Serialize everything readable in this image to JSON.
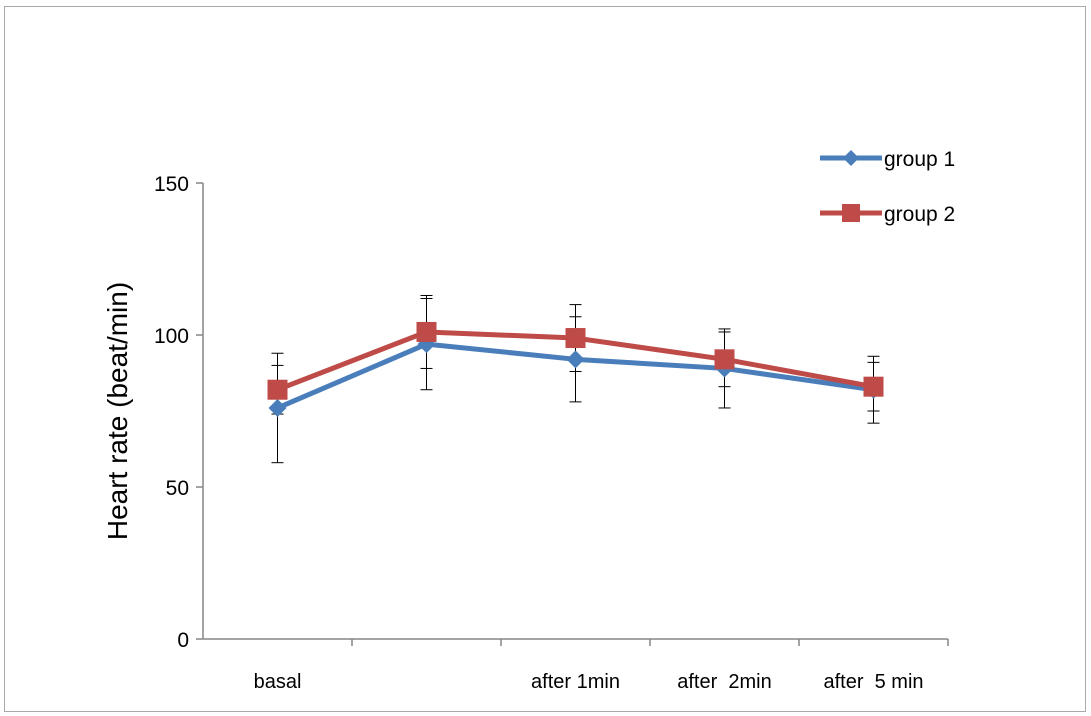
{
  "chart_data": {
    "type": "line",
    "title": "",
    "xlabel": "",
    "ylabel": "Heart rate (beat/min)",
    "ylim": [
      0,
      150
    ],
    "yticks": [
      "0",
      "50",
      "100",
      "150"
    ],
    "categories": [
      "basal",
      "",
      "after 1min",
      "after  2min",
      "after  5 min"
    ],
    "grid": false,
    "legend_position": "top-right",
    "series": [
      {
        "name": "group 1",
        "color": "#4a7ebb",
        "marker": "diamond",
        "values": [
          76,
          97,
          92,
          89,
          82
        ],
        "error": [
          18,
          15,
          14,
          13,
          11
        ]
      },
      {
        "name": "group 2",
        "color": "#be4b48",
        "marker": "square",
        "values": [
          82,
          101,
          99,
          92,
          83
        ],
        "error": [
          8,
          12,
          11,
          9,
          8
        ]
      }
    ]
  }
}
